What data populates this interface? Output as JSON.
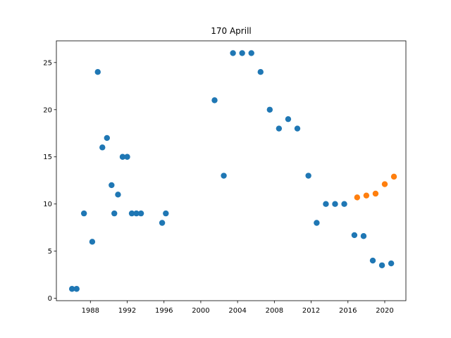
{
  "chart_data": {
    "type": "scatter",
    "title": "170 Aprill",
    "xlabel": "",
    "ylabel": "",
    "xlim": [
      1984.3,
      2022.3
    ],
    "ylim": [
      -0.25,
      27.3
    ],
    "xticks": [
      1988,
      1992,
      1996,
      2000,
      2004,
      2008,
      2012,
      2016,
      2020
    ],
    "yticks": [
      0,
      5,
      10,
      15,
      20,
      25
    ],
    "grid": false,
    "legend": "none",
    "series": [
      {
        "color": "#1f77b4",
        "points": [
          {
            "x": 1986.0,
            "y": 1
          },
          {
            "x": 1986.5,
            "y": 1
          },
          {
            "x": 1987.3,
            "y": 9
          },
          {
            "x": 1988.2,
            "y": 6
          },
          {
            "x": 1988.8,
            "y": 24
          },
          {
            "x": 1989.3,
            "y": 16
          },
          {
            "x": 1989.8,
            "y": 17
          },
          {
            "x": 1990.3,
            "y": 12
          },
          {
            "x": 1990.6,
            "y": 9
          },
          {
            "x": 1991.0,
            "y": 11
          },
          {
            "x": 1991.5,
            "y": 15
          },
          {
            "x": 1992.0,
            "y": 15
          },
          {
            "x": 1992.5,
            "y": 9
          },
          {
            "x": 1993.0,
            "y": 9
          },
          {
            "x": 1993.5,
            "y": 9
          },
          {
            "x": 1995.8,
            "y": 8
          },
          {
            "x": 1996.2,
            "y": 9
          },
          {
            "x": 2001.5,
            "y": 21
          },
          {
            "x": 2002.5,
            "y": 13
          },
          {
            "x": 2003.5,
            "y": 26
          },
          {
            "x": 2004.5,
            "y": 26
          },
          {
            "x": 2005.5,
            "y": 26
          },
          {
            "x": 2006.5,
            "y": 24
          },
          {
            "x": 2007.5,
            "y": 20
          },
          {
            "x": 2008.5,
            "y": 18
          },
          {
            "x": 2009.5,
            "y": 19
          },
          {
            "x": 2010.5,
            "y": 18
          },
          {
            "x": 2011.7,
            "y": 13
          },
          {
            "x": 2012.6,
            "y": 8
          },
          {
            "x": 2013.6,
            "y": 10
          },
          {
            "x": 2014.6,
            "y": 10
          },
          {
            "x": 2015.6,
            "y": 10
          },
          {
            "x": 2016.7,
            "y": 6.7
          },
          {
            "x": 2017.7,
            "y": 6.6
          },
          {
            "x": 2018.7,
            "y": 4
          },
          {
            "x": 2019.7,
            "y": 3.5
          },
          {
            "x": 2020.7,
            "y": 3.7
          }
        ]
      },
      {
        "color": "#ff7f0e",
        "points": [
          {
            "x": 2017.0,
            "y": 10.7
          },
          {
            "x": 2018.0,
            "y": 10.9
          },
          {
            "x": 2019.0,
            "y": 11.1
          },
          {
            "x": 2020.0,
            "y": 12.1
          },
          {
            "x": 2021.0,
            "y": 12.9
          }
        ]
      }
    ]
  }
}
